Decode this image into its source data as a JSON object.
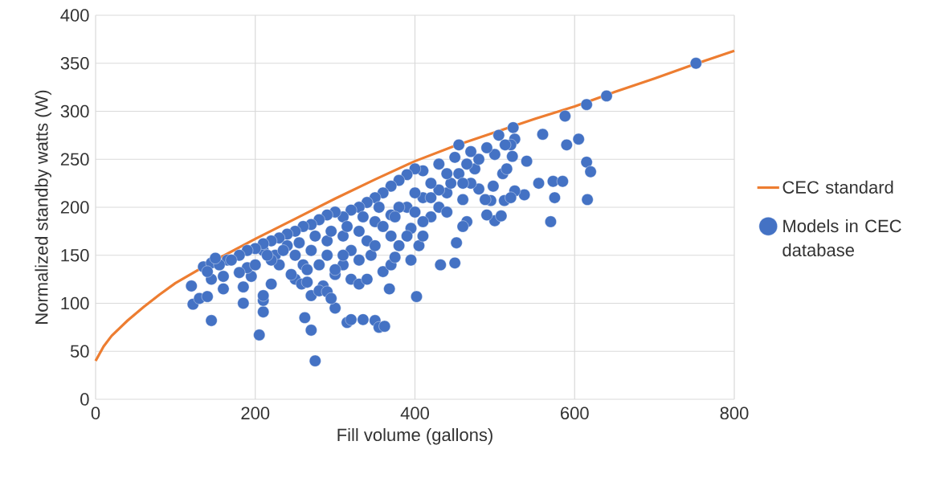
{
  "chart_data": {
    "type": "scatter",
    "xlabel": "Fill volume (gallons)",
    "ylabel": "Normalized standby watts (W)",
    "xlim": [
      0,
      800
    ],
    "ylim": [
      0,
      400
    ],
    "xticks": [
      0,
      200,
      400,
      600,
      800
    ],
    "yticks": [
      0,
      50,
      100,
      150,
      200,
      250,
      300,
      350,
      400
    ],
    "grid": true,
    "legend": "right",
    "series": [
      {
        "name": "CEC standard",
        "type": "line",
        "color": "#ed7d31",
        "marker": "none",
        "line_style": "solid",
        "x": [
          0,
          10,
          20,
          40,
          60,
          80,
          100,
          150,
          200,
          250,
          300,
          350,
          400,
          450,
          500,
          550,
          600,
          650,
          700,
          750,
          800
        ],
        "values": [
          40,
          55,
          66,
          82,
          96,
          109,
          121,
          145,
          167,
          188,
          209,
          229,
          248,
          264,
          278,
          292,
          305,
          320,
          334,
          349,
          363
        ]
      },
      {
        "name": "Models in CEC database",
        "color": "#4472c4",
        "marker": "circle",
        "x": [
          752,
          640,
          615,
          588,
          605,
          590,
          560,
          523,
          525,
          520,
          513,
          540,
          522,
          615,
          620,
          573,
          585,
          555,
          510,
          515,
          575,
          616,
          570,
          500,
          537,
          525,
          512,
          520,
          508,
          490,
          495,
          498,
          488,
          480,
          475,
          465,
          455,
          460,
          465,
          460,
          452,
          450,
          432,
          402,
          368,
          350,
          355,
          362,
          315,
          320,
          335,
          300,
          270,
          262,
          275,
          205,
          210,
          210,
          210,
          185,
          145,
          122,
          120,
          130,
          140,
          145,
          135,
          145,
          160,
          165,
          160,
          185,
          195,
          190,
          210,
          225,
          220,
          250,
          245,
          258,
          265,
          270,
          285,
          280,
          290,
          295,
          300,
          310,
          320,
          330,
          340,
          345,
          360,
          370,
          375,
          380,
          395,
          405,
          410,
          420,
          430,
          440,
          445,
          455,
          470,
          480,
          500,
          505,
          490,
          470,
          450,
          430,
          410,
          400,
          390,
          380,
          370,
          360,
          350,
          340,
          330,
          320,
          310,
          300,
          290,
          280,
          270,
          260,
          250,
          240,
          230,
          220,
          210,
          200,
          190,
          180,
          170,
          155,
          140,
          150,
          230,
          250,
          270,
          290,
          310,
          330,
          350,
          370,
          390,
          410,
          430,
          290,
          320,
          340,
          360,
          380,
          400,
          420,
          440,
          400,
          410,
          390,
          370,
          350,
          330,
          310,
          280,
          260,
          240,
          220,
          200,
          180,
          420,
          440,
          460,
          395,
          375,
          355,
          335,
          315,
          295,
          275,
          255,
          235,
          215,
          300,
          265
        ],
        "values": [
          350,
          316,
          307,
          295,
          271,
          265,
          276,
          283,
          271,
          265,
          265,
          248,
          253,
          247,
          237,
          227,
          227,
          225,
          235,
          240,
          210,
          208,
          185,
          186,
          213,
          217,
          207,
          210,
          191,
          192,
          207,
          222,
          208,
          219,
          240,
          245,
          265,
          208,
          185,
          180,
          163,
          142,
          140,
          107,
          115,
          82,
          75,
          76,
          80,
          83,
          83,
          95,
          72,
          85,
          40,
          67,
          91,
          103,
          108,
          100,
          82,
          99,
          118,
          105,
          107,
          125,
          138,
          142,
          128,
          145,
          115,
          117,
          128,
          137,
          155,
          150,
          120,
          125,
          130,
          120,
          122,
          108,
          118,
          113,
          112,
          105,
          130,
          140,
          125,
          120,
          125,
          150,
          133,
          140,
          148,
          160,
          178,
          160,
          170,
          190,
          200,
          215,
          225,
          235,
          225,
          250,
          255,
          275,
          262,
          258,
          252,
          245,
          238,
          240,
          234,
          228,
          222,
          215,
          210,
          205,
          200,
          197,
          190,
          195,
          192,
          187,
          182,
          180,
          175,
          172,
          168,
          165,
          162,
          157,
          155,
          150,
          145,
          140,
          133,
          147,
          140,
          150,
          155,
          165,
          170,
          175,
          185,
          192,
          200,
          210,
          218,
          150,
          155,
          165,
          180,
          200,
          215,
          225,
          235,
          195,
          185,
          170,
          170,
          160,
          145,
          150,
          140,
          140,
          160,
          145,
          140,
          132,
          210,
          195,
          225,
          145,
          190,
          200,
          190,
          180,
          175,
          170,
          163,
          155,
          150,
          135,
          135
        ]
      }
    ]
  }
}
